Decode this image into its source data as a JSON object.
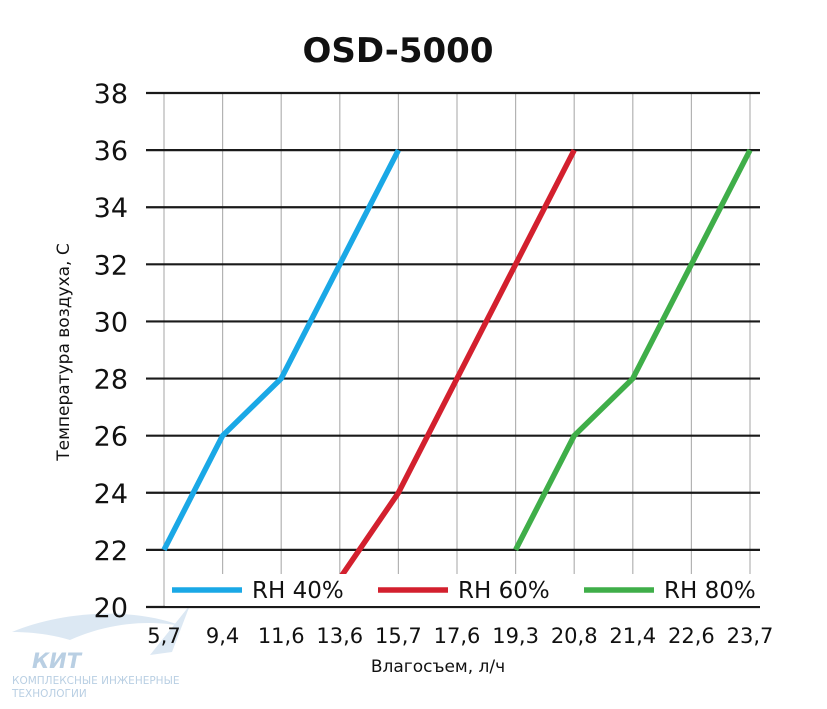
{
  "chart_data": {
    "type": "line",
    "title": "OSD-5000",
    "xlabel": "Влагосъем, л/ч",
    "ylabel": "Температура воздуха, С",
    "x": [
      "5,7",
      "9,4",
      "11,6",
      "13,6",
      "15,7",
      "17,6",
      "19,3",
      "20,8",
      "21,4",
      "22,6",
      "23,7"
    ],
    "y_ticks": [
      "20",
      "22",
      "24",
      "26",
      "28",
      "30",
      "32",
      "34",
      "36",
      "38"
    ],
    "ylim": [
      20,
      38
    ],
    "grid": true,
    "legend_position": "bottom",
    "series": [
      {
        "name": "RH 40%",
        "color": "#1aa8e6",
        "points": [
          [
            5.7,
            22
          ],
          [
            9.4,
            26
          ],
          [
            11.6,
            28
          ],
          [
            13.6,
            32
          ],
          [
            15.7,
            36
          ]
        ]
      },
      {
        "name": "RH 60%",
        "color": "#d3202e",
        "points": [
          [
            13.6,
            21
          ],
          [
            15.7,
            24
          ],
          [
            17.6,
            28
          ],
          [
            19.3,
            32
          ],
          [
            20.8,
            36
          ]
        ]
      },
      {
        "name": "RH 80%",
        "color": "#3fae49",
        "points": [
          [
            19.3,
            22
          ],
          [
            20.8,
            26
          ],
          [
            21.4,
            28
          ],
          [
            22.6,
            32
          ],
          [
            23.7,
            36
          ]
        ]
      }
    ]
  },
  "watermark": {
    "brand": "КИТ",
    "line1": "КОМПЛЕКСНЫЕ ИНЖЕНЕРНЫЕ",
    "line2": "ТЕХНОЛОГИИ"
  }
}
